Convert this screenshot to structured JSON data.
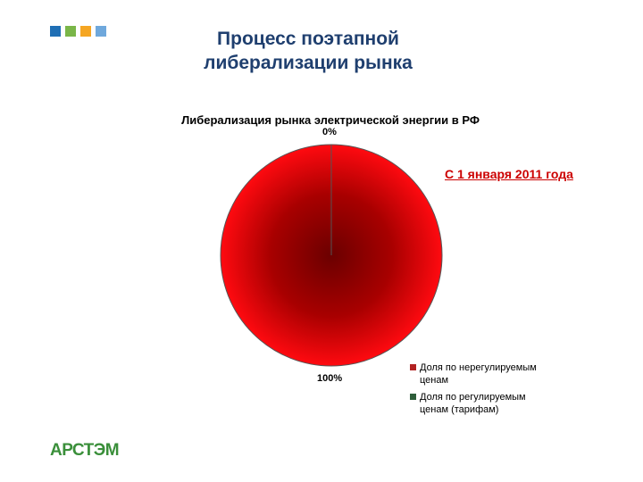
{
  "header": {
    "squares": [
      "#1f6fb5",
      "#7ab648",
      "#f5a623",
      "#6fa8dc"
    ],
    "title_line1": "Процесс поэтапной",
    "title_line2": "либерализации рынка"
  },
  "callout": "С 1 января 2011 года",
  "logo": "АРСТЭМ",
  "chart_data": {
    "type": "pie",
    "title": "Либерализация рынка электрической энергии в РФ",
    "categories": [
      "Доля по нерегулируемым ценам",
      "Доля по регулируемым ценам (тарифам)"
    ],
    "values": [
      100,
      0
    ],
    "data_labels": [
      "100%",
      "0%"
    ],
    "colors": [
      "#e8000a",
      "#2e5e3a"
    ],
    "legend": {
      "placement": "bottom-right",
      "entries": [
        {
          "line1": "Доля по нерегулируемым",
          "line2": "ценам",
          "color": "#b22222"
        },
        {
          "line1": "Доля по регулируемым",
          "line2": "ценам (тарифам)",
          "color": "#2e5e3a"
        }
      ]
    }
  }
}
